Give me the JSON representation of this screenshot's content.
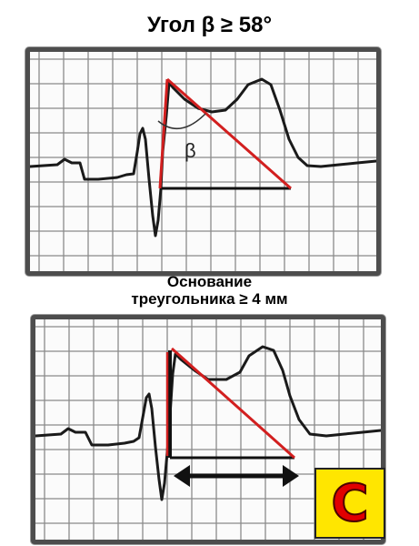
{
  "title": "Угол β ≥ 58°",
  "caption_line1": "Основание",
  "caption_line2": "треугольника ≥ 4 мм",
  "angle_label": "β",
  "badge_letter": "C",
  "colors": {
    "ecg_trace": "#1a1a1a",
    "triangle": "#d21f1f",
    "base_line": "#111111",
    "grid": "#8a8a8a",
    "badge_fill": "#ffe600",
    "badge_letter": "#e10000"
  },
  "icons": {
    "measure_arrow": "double-headed-arrow-icon"
  }
}
